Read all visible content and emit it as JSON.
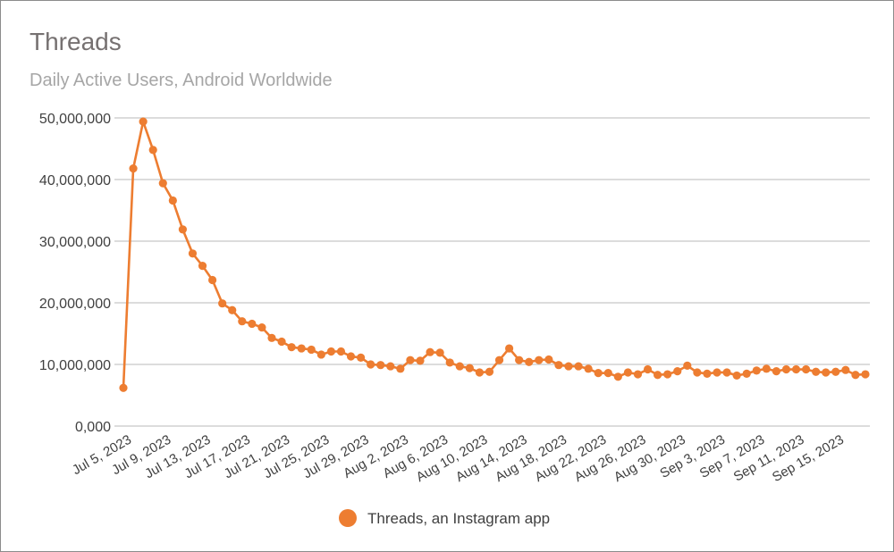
{
  "chart_data": {
    "type": "line",
    "title": "Threads",
    "subtitle": "Daily Active Users, Android Worldwide",
    "ylim": [
      0,
      50000000
    ],
    "y_ticks": [
      0,
      10000000,
      20000000,
      30000000,
      40000000,
      50000000
    ],
    "y_tick_labels": [
      "0,000",
      "10,000,000",
      "20,000,000",
      "30,000,000",
      "40,000,000",
      "50,000,000"
    ],
    "x_tick_labels": [
      "Jul 5, 2023",
      "Jul 9, 2023",
      "Jul 13, 2023",
      "Jul 17, 2023",
      "Jul 21, 2023",
      "Jul 25, 2023",
      "Jul 29, 2023",
      "Aug 2, 2023",
      "Aug 6, 2023",
      "Aug 10, 2023",
      "Aug 14, 2023",
      "Aug 18, 2023",
      "Aug 22, 2023",
      "Aug 26, 2023",
      "Aug 30, 2023",
      "Sep 3, 2023",
      "Sep 7, 2023",
      "Sep 11, 2023",
      "Sep 15, 2023"
    ],
    "x_start": "2023-07-05",
    "x_end": "2023-09-18",
    "grid": true,
    "legend_position": "bottom",
    "color": "#ed7d31",
    "series": [
      {
        "name": "Threads, an Instagram app",
        "values": [
          6200000,
          41800000,
          49400000,
          44800000,
          39400000,
          36600000,
          31900000,
          28000000,
          26000000,
          23700000,
          19900000,
          18800000,
          17000000,
          16600000,
          16000000,
          14300000,
          13700000,
          12800000,
          12600000,
          12400000,
          11600000,
          12100000,
          12100000,
          11300000,
          11100000,
          10000000,
          9900000,
          9700000,
          9300000,
          10700000,
          10600000,
          12000000,
          11900000,
          10300000,
          9700000,
          9400000,
          8700000,
          8800000,
          10700000,
          12600000,
          10700000,
          10400000,
          10700000,
          10800000,
          9900000,
          9700000,
          9700000,
          9300000,
          8600000,
          8600000,
          8000000,
          8700000,
          8400000,
          9200000,
          8300000,
          8400000,
          8900000,
          9800000,
          8700000,
          8500000,
          8700000,
          8700000,
          8200000,
          8500000,
          9000000,
          9300000,
          8900000,
          9200000,
          9200000,
          9200000,
          8800000,
          8700000,
          8800000,
          9100000,
          8300000,
          8400000
        ]
      }
    ]
  }
}
